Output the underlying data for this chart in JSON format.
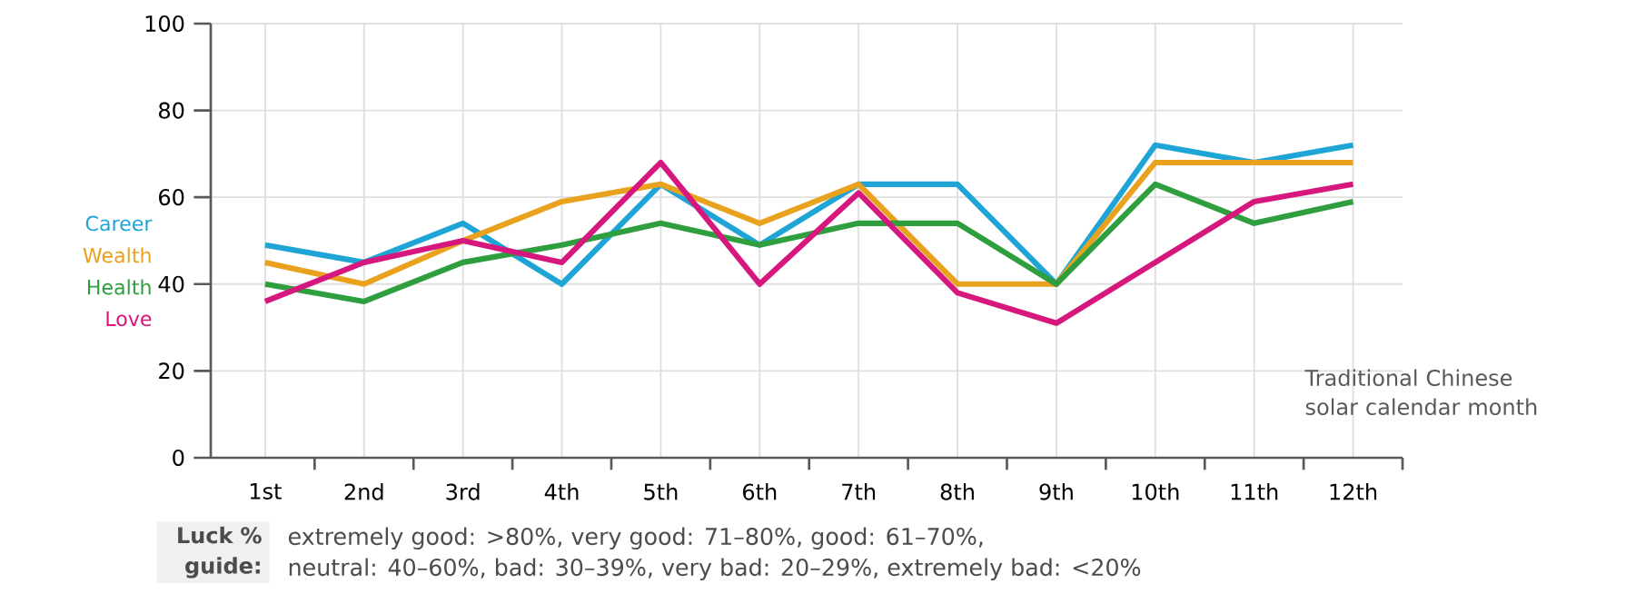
{
  "chart_data": {
    "type": "line",
    "categories": [
      "1st",
      "2nd",
      "3rd",
      "4th",
      "5th",
      "6th",
      "7th",
      "8th",
      "9th",
      "10th",
      "11th",
      "12th"
    ],
    "xlabel": "Traditional Chinese solar calendar month",
    "series": [
      {
        "name": "Career",
        "color": "#1ea5d6",
        "values": [
          49,
          45,
          54,
          40,
          63,
          49,
          63,
          63,
          40,
          72,
          68,
          72
        ]
      },
      {
        "name": "Wealth",
        "color": "#e8a21e",
        "values": [
          45,
          40,
          50,
          59,
          63,
          54,
          63,
          40,
          40,
          68,
          68,
          68
        ]
      },
      {
        "name": "Health",
        "color": "#2e9e3e",
        "values": [
          40,
          36,
          45,
          49,
          54,
          49,
          54,
          54,
          40,
          63,
          54,
          59
        ]
      },
      {
        "name": "Love",
        "color": "#d6187e",
        "values": [
          36,
          45,
          50,
          45,
          68,
          40,
          61,
          38,
          31,
          45,
          59,
          63
        ]
      }
    ],
    "ylim": [
      0,
      100
    ],
    "yticks": [
      0,
      20,
      40,
      60,
      80,
      100
    ],
    "grid": true,
    "legend": "left",
    "marker": "none",
    "line_style": "solid",
    "annotations": [
      "Luck % guide:",
      "extremely good: >80%, very good: 71–80%, good: 61–70%,",
      "neutral: 40–60%, bad: 30–39%, very bad: 20–29%, extremely bad: <20%"
    ]
  }
}
